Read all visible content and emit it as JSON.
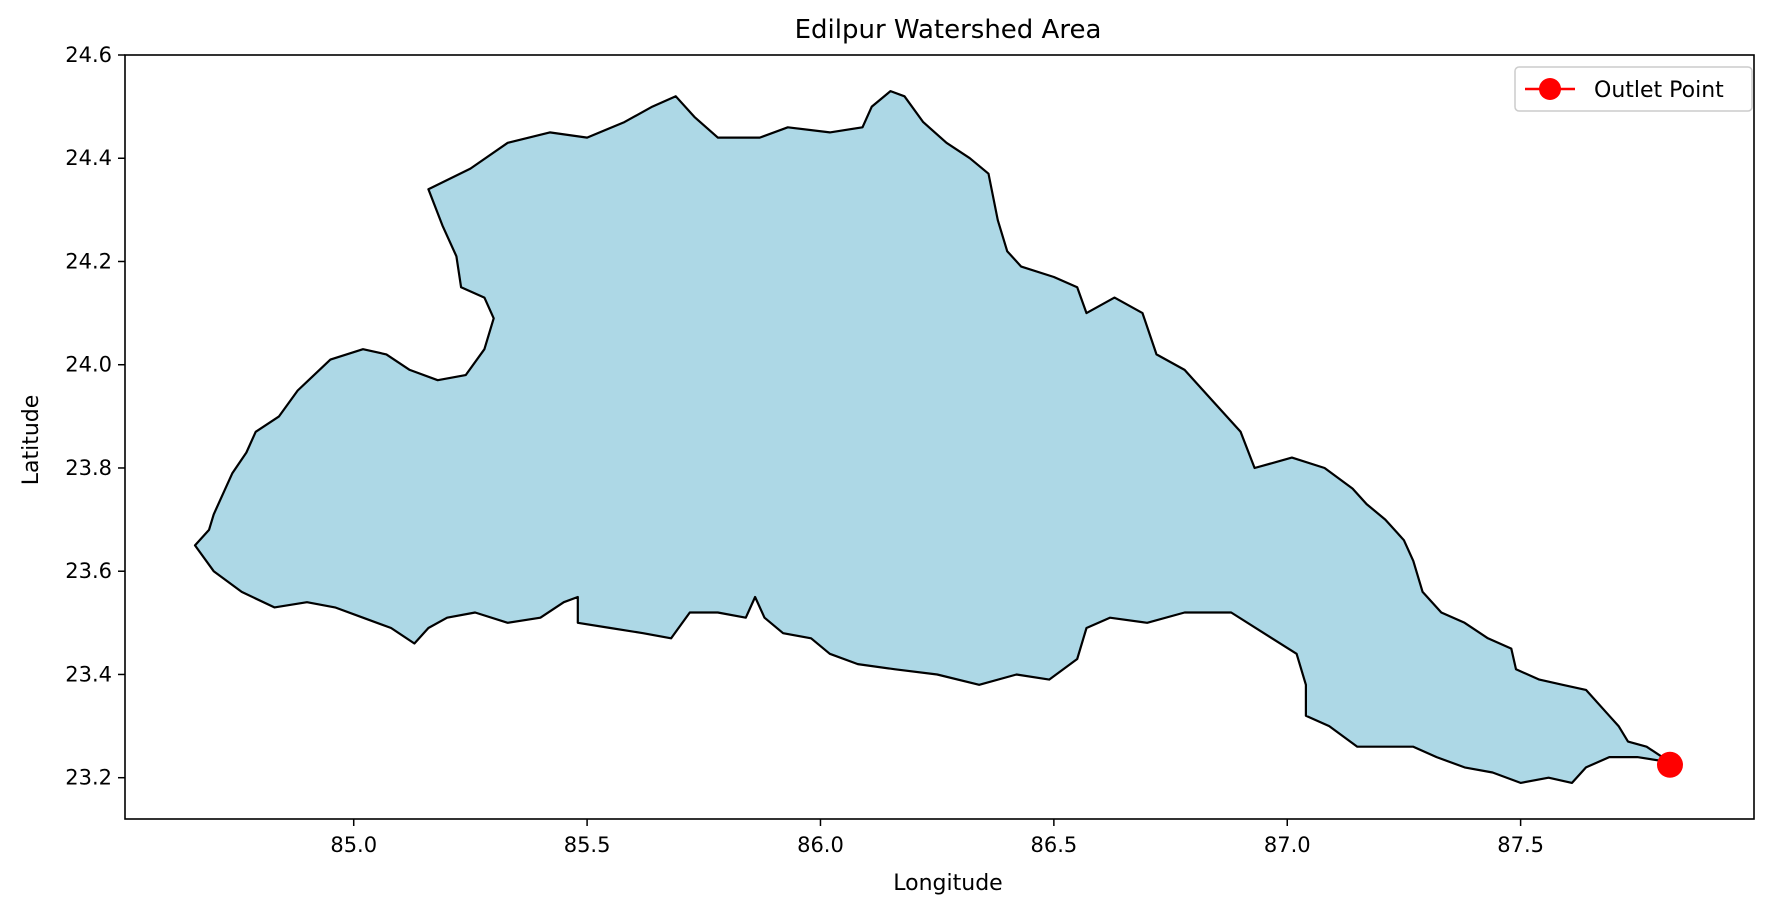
{
  "chart_data": {
    "type": "area",
    "title": "Edilpur Watershed Area",
    "xlabel": "Longitude",
    "ylabel": "Latitude",
    "xlim": [
      84.51,
      88.0
    ],
    "ylim": [
      23.12,
      24.6
    ],
    "xticks": [
      85.0,
      85.5,
      86.0,
      86.5,
      87.0,
      87.5
    ],
    "xtick_labels": [
      "85.0",
      "85.5",
      "86.0",
      "86.5",
      "87.0",
      "87.5"
    ],
    "yticks": [
      23.2,
      23.4,
      23.6,
      23.8,
      24.0,
      24.2,
      24.4,
      24.6
    ],
    "ytick_labels": [
      "23.2",
      "23.4",
      "23.6",
      "23.8",
      "24.0",
      "24.2",
      "24.4",
      "24.6"
    ],
    "grid": false,
    "legend_position": "top-right",
    "colors": {
      "watershed_fill": "#add8e6",
      "watershed_edge": "#000000",
      "outlet": "#ff0000"
    },
    "series": [
      {
        "name": "",
        "kind": "polygon",
        "boundary": [
          [
            84.66,
            23.65
          ],
          [
            84.7,
            23.6
          ],
          [
            84.76,
            23.56
          ],
          [
            84.83,
            23.53
          ],
          [
            84.9,
            23.54
          ],
          [
            84.96,
            23.53
          ],
          [
            85.02,
            23.51
          ],
          [
            85.08,
            23.49
          ],
          [
            85.13,
            23.46
          ],
          [
            85.16,
            23.49
          ],
          [
            85.2,
            23.51
          ],
          [
            85.26,
            23.52
          ],
          [
            85.33,
            23.5
          ],
          [
            85.4,
            23.51
          ],
          [
            85.45,
            23.54
          ],
          [
            85.48,
            23.55
          ],
          [
            85.48,
            23.5
          ],
          [
            85.55,
            23.49
          ],
          [
            85.62,
            23.48
          ],
          [
            85.68,
            23.47
          ],
          [
            85.72,
            23.52
          ],
          [
            85.78,
            23.52
          ],
          [
            85.84,
            23.51
          ],
          [
            85.86,
            23.55
          ],
          [
            85.88,
            23.51
          ],
          [
            85.92,
            23.48
          ],
          [
            85.98,
            23.47
          ],
          [
            86.02,
            23.44
          ],
          [
            86.08,
            23.42
          ],
          [
            86.16,
            23.41
          ],
          [
            86.25,
            23.4
          ],
          [
            86.34,
            23.38
          ],
          [
            86.42,
            23.4
          ],
          [
            86.49,
            23.39
          ],
          [
            86.55,
            23.43
          ],
          [
            86.57,
            23.49
          ],
          [
            86.62,
            23.51
          ],
          [
            86.7,
            23.5
          ],
          [
            86.78,
            23.52
          ],
          [
            86.88,
            23.52
          ],
          [
            86.95,
            23.48
          ],
          [
            87.02,
            23.44
          ],
          [
            87.04,
            23.38
          ],
          [
            87.04,
            23.32
          ],
          [
            87.09,
            23.3
          ],
          [
            87.15,
            23.26
          ],
          [
            87.21,
            23.26
          ],
          [
            87.27,
            23.26
          ],
          [
            87.32,
            23.24
          ],
          [
            87.38,
            23.22
          ],
          [
            87.44,
            23.21
          ],
          [
            87.5,
            23.19
          ],
          [
            87.56,
            23.2
          ],
          [
            87.61,
            23.19
          ],
          [
            87.64,
            23.22
          ],
          [
            87.69,
            23.24
          ],
          [
            87.75,
            23.24
          ],
          [
            87.82,
            23.23
          ],
          [
            87.77,
            23.26
          ],
          [
            87.73,
            23.27
          ],
          [
            87.71,
            23.3
          ],
          [
            87.69,
            23.32
          ],
          [
            87.64,
            23.37
          ],
          [
            87.59,
            23.38
          ],
          [
            87.54,
            23.39
          ],
          [
            87.49,
            23.41
          ],
          [
            87.48,
            23.45
          ],
          [
            87.43,
            23.47
          ],
          [
            87.38,
            23.5
          ],
          [
            87.33,
            23.52
          ],
          [
            87.29,
            23.56
          ],
          [
            87.27,
            23.62
          ],
          [
            87.25,
            23.66
          ],
          [
            87.21,
            23.7
          ],
          [
            87.17,
            23.73
          ],
          [
            87.14,
            23.76
          ],
          [
            87.08,
            23.8
          ],
          [
            87.01,
            23.82
          ],
          [
            86.93,
            23.8
          ],
          [
            86.9,
            23.87
          ],
          [
            86.84,
            23.93
          ],
          [
            86.78,
            23.99
          ],
          [
            86.72,
            24.02
          ],
          [
            86.69,
            24.1
          ],
          [
            86.63,
            24.13
          ],
          [
            86.57,
            24.1
          ],
          [
            86.55,
            24.15
          ],
          [
            86.5,
            24.17
          ],
          [
            86.43,
            24.19
          ],
          [
            86.4,
            24.22
          ],
          [
            86.38,
            24.28
          ],
          [
            86.36,
            24.37
          ],
          [
            86.32,
            24.4
          ],
          [
            86.27,
            24.43
          ],
          [
            86.22,
            24.47
          ],
          [
            86.18,
            24.52
          ],
          [
            86.15,
            24.53
          ],
          [
            86.11,
            24.5
          ],
          [
            86.09,
            24.46
          ],
          [
            86.02,
            24.45
          ],
          [
            85.93,
            24.46
          ],
          [
            85.87,
            24.44
          ],
          [
            85.78,
            24.44
          ],
          [
            85.73,
            24.48
          ],
          [
            85.69,
            24.52
          ],
          [
            85.64,
            24.5
          ],
          [
            85.58,
            24.47
          ],
          [
            85.5,
            24.44
          ],
          [
            85.42,
            24.45
          ],
          [
            85.33,
            24.43
          ],
          [
            85.25,
            24.38
          ],
          [
            85.16,
            24.34
          ],
          [
            85.19,
            24.27
          ],
          [
            85.22,
            24.21
          ],
          [
            85.23,
            24.15
          ],
          [
            85.28,
            24.13
          ],
          [
            85.3,
            24.09
          ],
          [
            85.28,
            24.03
          ],
          [
            85.24,
            23.98
          ],
          [
            85.18,
            23.97
          ],
          [
            85.12,
            23.99
          ],
          [
            85.07,
            24.02
          ],
          [
            85.02,
            24.03
          ],
          [
            84.95,
            24.01
          ],
          [
            84.88,
            23.95
          ],
          [
            84.84,
            23.9
          ],
          [
            84.79,
            23.87
          ],
          [
            84.77,
            23.83
          ],
          [
            84.74,
            23.79
          ],
          [
            84.72,
            23.75
          ],
          [
            84.7,
            23.71
          ],
          [
            84.69,
            23.68
          ]
        ]
      },
      {
        "name": "Outlet Point",
        "kind": "point",
        "x": 87.82,
        "y": 23.225
      }
    ]
  }
}
